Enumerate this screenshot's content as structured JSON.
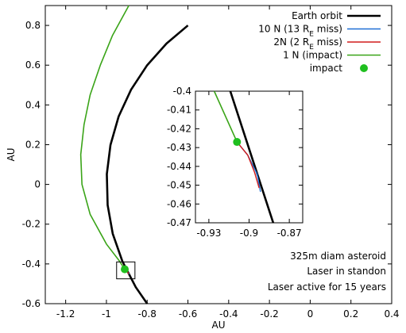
{
  "chart_data": {
    "type": "line",
    "title": "",
    "xlabel": "AU",
    "ylabel": "AU",
    "xlim": [
      -1.3,
      0.4
    ],
    "ylim": [
      -0.6,
      0.9
    ],
    "xticks": [
      -1.2,
      -1,
      -0.8,
      -0.6,
      -0.4,
      -0.2,
      0,
      0.2,
      0.4
    ],
    "yticks": [
      -0.6,
      -0.4,
      -0.2,
      0,
      0.2,
      0.4,
      0.6,
      0.8
    ],
    "xtick_labels": [
      "-1.2",
      "-1",
      "-0.8",
      "-0.6",
      "-0.4",
      "-0.2",
      "0",
      "0.2",
      "0.4"
    ],
    "ytick_labels": [
      "-0.6",
      "-0.4",
      "-0.2",
      "0",
      "0.2",
      "0.4",
      "0.6",
      "0.8"
    ],
    "legend_position": "top-right",
    "series": [
      {
        "name": "Earth orbit",
        "color": "#000000",
        "x": [
          -0.6,
          -0.705,
          -0.8,
          -0.879,
          -0.94,
          -0.98,
          -0.998,
          -0.994,
          -0.969,
          -0.922,
          -0.856,
          -0.8
        ],
        "y": [
          0.8,
          0.709,
          0.6,
          0.477,
          0.342,
          0.199,
          0.052,
          -0.104,
          -0.248,
          -0.386,
          -0.517,
          -0.6
        ]
      },
      {
        "name": "10 N (13 R",
        "legend_sub": "E",
        "legend_suffix": " miss)",
        "color": "#1f6fd6",
        "x": [
          -0.91,
          -0.9,
          -0.894,
          -0.888
        ],
        "y": [
          -0.427,
          -0.433,
          -0.443,
          -0.453
        ]
      },
      {
        "name": "2N (2 R",
        "legend_sub": "E",
        "legend_suffix": " miss)",
        "color": "#d01c1c",
        "x": [
          -0.91,
          -0.9,
          -0.895,
          -0.891
        ],
        "y": [
          -0.427,
          -0.433,
          -0.442,
          -0.451
        ]
      },
      {
        "name": "1 N (impact)",
        "color": "#3aa418",
        "x": [
          -0.89,
          -0.97,
          -1.03,
          -1.08,
          -1.11,
          -1.126,
          -1.12,
          -1.08,
          -1.0,
          -0.94,
          -0.91
        ],
        "y": [
          0.9,
          0.75,
          0.6,
          0.45,
          0.3,
          0.15,
          0.0,
          -0.15,
          -0.3,
          -0.38,
          -0.427
        ]
      }
    ],
    "markers": [
      {
        "name": "impact",
        "x": -0.91,
        "y": -0.427,
        "color": "#1fbf1f"
      }
    ],
    "inset": {
      "xlim": [
        -0.94,
        -0.86
      ],
      "ylim": [
        -0.47,
        -0.4
      ],
      "xticks": [
        -0.93,
        -0.9,
        -0.87
      ],
      "yticks": [
        -0.4,
        -0.41,
        -0.42,
        -0.43,
        -0.44,
        -0.45,
        -0.46,
        -0.47
      ],
      "xtick_labels": [
        "-0.93",
        "-0.9",
        "-0.87"
      ],
      "ytick_labels": [
        "-0.4",
        "-0.41",
        "-0.42",
        "-0.43",
        "-0.44",
        "-0.45",
        "-0.46",
        "-0.47"
      ],
      "earth": {
        "x": [
          -0.914,
          -0.882
        ],
        "y": [
          -0.4,
          -0.47
        ]
      },
      "green": {
        "x": [
          -0.926,
          -0.909
        ],
        "y": [
          -0.4,
          -0.427
        ]
      },
      "blue": {
        "x": [
          -0.909,
          -0.901,
          -0.894,
          -0.8915
        ],
        "y": [
          -0.427,
          -0.434,
          -0.444,
          -0.4535
        ]
      },
      "red": {
        "x": [
          -0.909,
          -0.901,
          -0.896,
          -0.8925
        ],
        "y": [
          -0.427,
          -0.434,
          -0.443,
          -0.4515
        ]
      },
      "impact": {
        "x": -0.909,
        "y": -0.427
      }
    },
    "zoom_box": {
      "x": [
        -0.95,
        -0.86
      ],
      "y": [
        -0.475,
        -0.39
      ]
    }
  },
  "annotations": [
    "325m diam asteroid",
    "Laser in standon",
    "Laser active for 15 years"
  ]
}
